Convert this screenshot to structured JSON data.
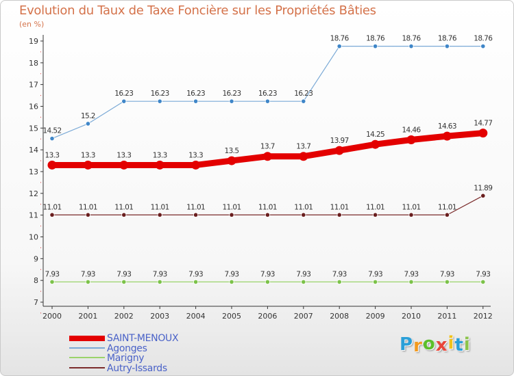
{
  "chart_data": {
    "type": "line",
    "title": "Evolution du Taux de Taxe Foncière sur les Propriétés Bâties",
    "unit_label": "(en %)",
    "xlabel": "",
    "ylabel": "",
    "categories": [
      "2000",
      "2001",
      "2002",
      "2003",
      "2004",
      "2005",
      "2006",
      "2007",
      "2008",
      "2009",
      "2010",
      "2011",
      "2012"
    ],
    "ylim": [
      7,
      19
    ],
    "yticks": [
      7,
      8,
      9,
      10,
      11,
      12,
      13,
      14,
      15,
      16,
      17,
      18,
      19
    ],
    "series": [
      {
        "name": "SAINT-MENOUX",
        "color": "#e30000",
        "values": [
          13.3,
          13.3,
          13.3,
          13.3,
          13.3,
          13.5,
          13.7,
          13.7,
          13.97,
          14.25,
          14.46,
          14.63,
          14.77
        ],
        "labels": [
          "13.3",
          "13.3",
          "13.3",
          "13.3",
          "13.3",
          "13.5",
          "13.7",
          "13.7",
          "13.97",
          "14.25",
          "14.46",
          "14.63",
          "14.77"
        ]
      },
      {
        "name": "Agonges",
        "color": "#7aa9d6",
        "values": [
          14.52,
          15.2,
          16.23,
          16.23,
          16.23,
          16.23,
          16.23,
          16.23,
          18.76,
          18.76,
          18.76,
          18.76,
          18.76
        ],
        "labels": [
          "14.52",
          "15.2",
          "16.23",
          "16.23",
          "16.23",
          "16.23",
          "16.23",
          "16.23",
          "18.76",
          "18.76",
          "18.76",
          "18.76",
          "18.76"
        ]
      },
      {
        "name": "Marigny",
        "color": "#9ad36a",
        "values": [
          7.93,
          7.93,
          7.93,
          7.93,
          7.93,
          7.93,
          7.93,
          7.93,
          7.93,
          7.93,
          7.93,
          7.93,
          7.93
        ],
        "labels": [
          "7.93",
          "7.93",
          "7.93",
          "7.93",
          "7.93",
          "7.93",
          "7.93",
          "7.93",
          "7.93",
          "7.93",
          "7.93",
          "7.93",
          "7.93"
        ]
      },
      {
        "name": "Autry-Issards",
        "color": "#7a2a2a",
        "values": [
          11.01,
          11.01,
          11.01,
          11.01,
          11.01,
          11.01,
          11.01,
          11.01,
          11.01,
          11.01,
          11.01,
          11.01,
          11.89
        ],
        "labels": [
          "11.01",
          "11.01",
          "11.01",
          "11.01",
          "11.01",
          "11.01",
          "11.01",
          "11.01",
          "11.01",
          "11.01",
          "11.01",
          "11.01",
          "11.89"
        ]
      }
    ],
    "legend_position": "bottom-left",
    "grid": false
  },
  "logo": {
    "letters": [
      "P",
      "r",
      "o",
      "x",
      "i",
      "t",
      "i"
    ],
    "colors": [
      "#2a9fd8",
      "#f39a1e",
      "#5cbf2a",
      "#e8463a",
      "#f2c21b",
      "#2a9fd8",
      "#8bc34a"
    ]
  }
}
